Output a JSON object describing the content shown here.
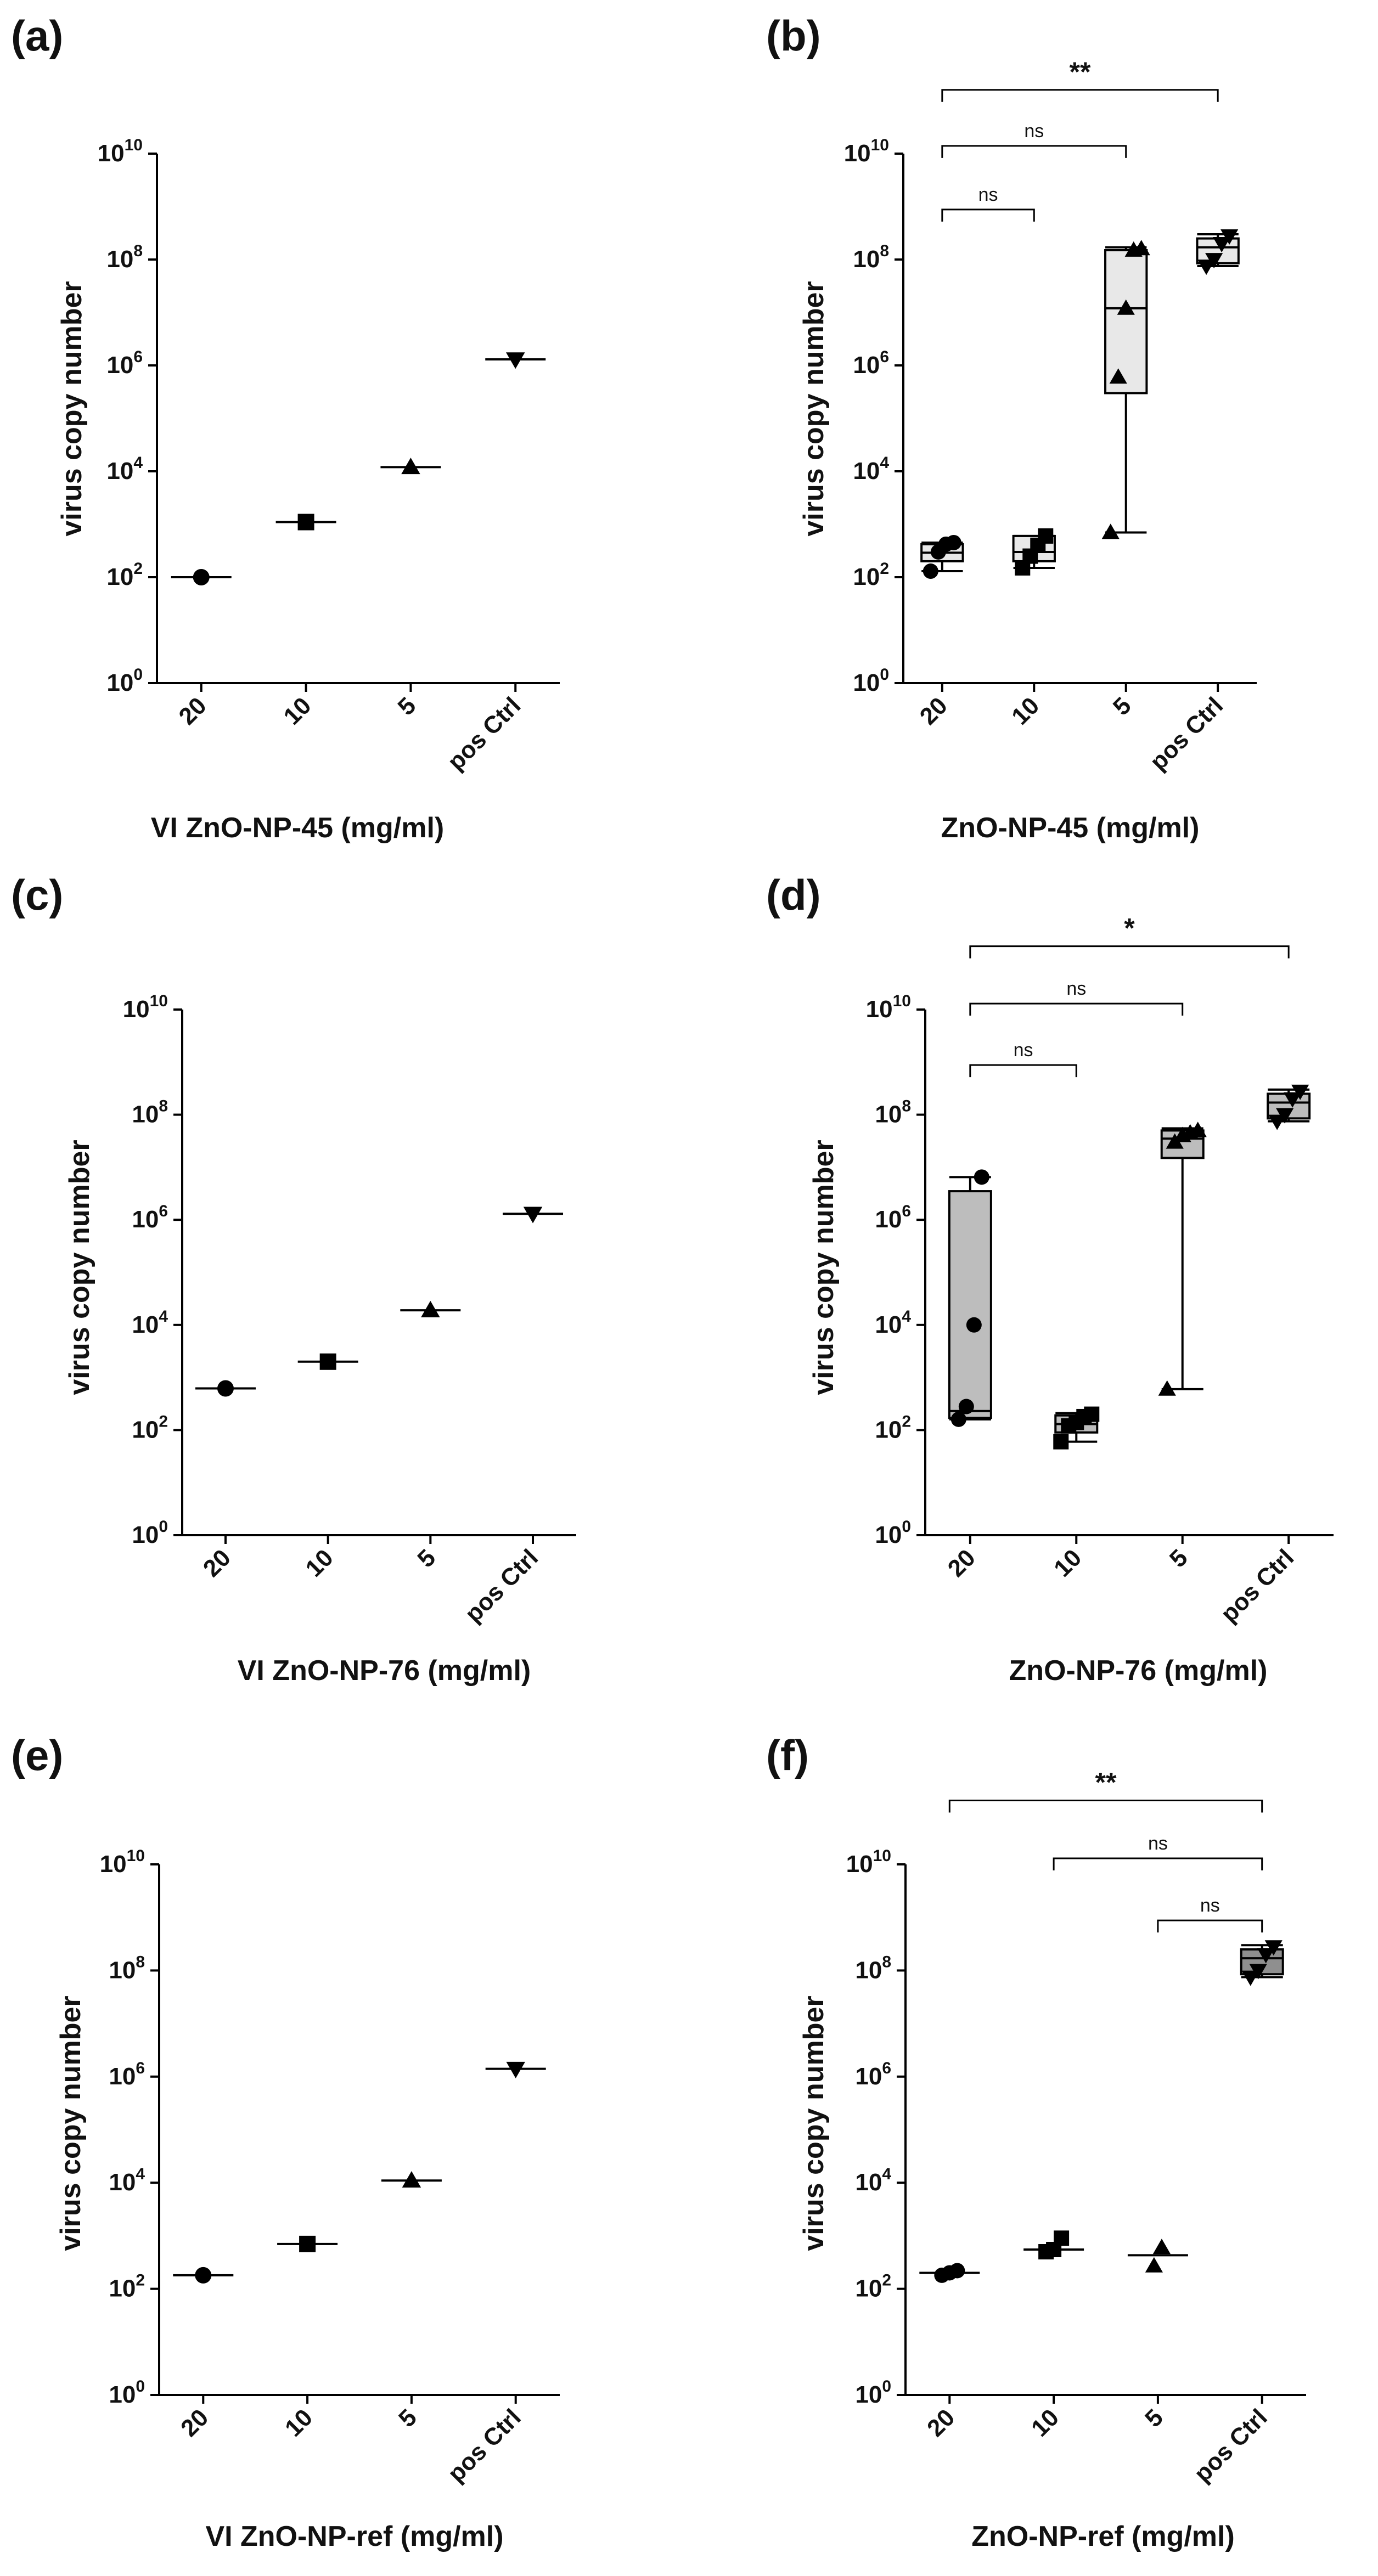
{
  "figure": {
    "panel_labels": [
      "(a)",
      "(b)",
      "(c)",
      "(d)",
      "(e)",
      "(f)"
    ]
  },
  "chart_data": [
    {
      "panel": "(a)",
      "type": "scatter",
      "title": "",
      "xlabel": "VI ZnO-NP-45 (mg/ml)",
      "ylabel": "virus copy number",
      "yscale": "log10",
      "ylim": [
        1,
        10000000000
      ],
      "yticks": [
        {
          "base": "10",
          "exp": "0"
        },
        {
          "base": "10",
          "exp": "2"
        },
        {
          "base": "10",
          "exp": "4"
        },
        {
          "base": "10",
          "exp": "6"
        },
        {
          "base": "10",
          "exp": "8"
        },
        {
          "base": "10",
          "exp": "10"
        }
      ],
      "categories": [
        "20",
        "10",
        "5",
        "pos Ctrl"
      ],
      "markers": [
        "circle",
        "square",
        "triangle-up",
        "triangle-down"
      ],
      "values": [
        100,
        1100,
        12000,
        1300000
      ],
      "annotations": []
    },
    {
      "panel": "(b)",
      "type": "box",
      "title": "",
      "xlabel": "ZnO-NP-45 (mg/ml)",
      "ylabel": "virus copy number",
      "yscale": "log10",
      "ylim": [
        1,
        10000000000
      ],
      "yticks": [
        {
          "base": "10",
          "exp": "0"
        },
        {
          "base": "10",
          "exp": "2"
        },
        {
          "base": "10",
          "exp": "4"
        },
        {
          "base": "10",
          "exp": "6"
        },
        {
          "base": "10",
          "exp": "8"
        },
        {
          "base": "10",
          "exp": "10"
        }
      ],
      "categories": [
        "20",
        "10",
        "5",
        "pos Ctrl"
      ],
      "markers": [
        "circle",
        "square",
        "triangle-up",
        "triangle-down"
      ],
      "fill": "#e8e8e8",
      "boxes": [
        {
          "min": 130,
          "q1": 200,
          "median": 290,
          "q3": 420,
          "max": 450,
          "points": [
            130,
            300,
            420,
            450
          ]
        },
        {
          "min": 150,
          "q1": 200,
          "median": 300,
          "q3": 600,
          "max": 600,
          "points": [
            150,
            250,
            400,
            600
          ]
        },
        {
          "min": 700,
          "q1": 300000,
          "median": 12000000,
          "q3": 150000000,
          "max": 170000000,
          "points": [
            700,
            600000,
            12000000,
            150000000,
            160000000
          ]
        },
        {
          "min": 75000000,
          "q1": 85000000,
          "median": 170000000,
          "q3": 250000000,
          "max": 300000000,
          "points": [
            75000000,
            100000000,
            200000000,
            280000000
          ]
        }
      ],
      "annotations": [
        {
          "from": 0,
          "to": 1,
          "label": "ns",
          "bold": false,
          "y": 880000000
        },
        {
          "from": 0,
          "to": 2,
          "label": "ns",
          "bold": false,
          "y": 14000000000
        },
        {
          "from": 0,
          "to": 3,
          "label": "**",
          "bold": true,
          "y": 160000000000
        }
      ]
    },
    {
      "panel": "(c)",
      "type": "scatter",
      "title": "",
      "xlabel": "VI ZnO-NP-76 (mg/ml)",
      "ylabel": "virus copy number",
      "yscale": "log10",
      "ylim": [
        1,
        10000000000
      ],
      "yticks": [
        {
          "base": "10",
          "exp": "0"
        },
        {
          "base": "10",
          "exp": "2"
        },
        {
          "base": "10",
          "exp": "4"
        },
        {
          "base": "10",
          "exp": "6"
        },
        {
          "base": "10",
          "exp": "8"
        },
        {
          "base": "10",
          "exp": "10"
        }
      ],
      "categories": [
        "20",
        "10",
        "5",
        "pos Ctrl"
      ],
      "markers": [
        "circle",
        "square",
        "triangle-up",
        "triangle-down"
      ],
      "values": [
        620,
        2000,
        19000,
        1300000
      ],
      "annotations": []
    },
    {
      "panel": "(d)",
      "type": "box",
      "title": "",
      "xlabel": "ZnO-NP-76 (mg/ml)",
      "ylabel": "virus copy number",
      "yscale": "log10",
      "ylim": [
        1,
        10000000000
      ],
      "yticks": [
        {
          "base": "10",
          "exp": "0"
        },
        {
          "base": "10",
          "exp": "2"
        },
        {
          "base": "10",
          "exp": "4"
        },
        {
          "base": "10",
          "exp": "6"
        },
        {
          "base": "10",
          "exp": "8"
        },
        {
          "base": "10",
          "exp": "10"
        }
      ],
      "categories": [
        "20",
        "10",
        "5",
        "pos Ctrl"
      ],
      "markers": [
        "circle",
        "square",
        "triangle-up",
        "triangle-down"
      ],
      "fill": "#bdbdbd",
      "boxes": [
        {
          "min": 160,
          "q1": 170,
          "median": 230,
          "q3": 3500000,
          "max": 6500000,
          "points": [
            160,
            280,
            10000,
            6500000
          ]
        },
        {
          "min": 60,
          "q1": 90,
          "median": 130,
          "q3": 190,
          "max": 210,
          "points": [
            60,
            120,
            140,
            180,
            200
          ]
        },
        {
          "min": 600,
          "q1": 15000000,
          "median": 35000000,
          "q3": 50000000,
          "max": 55000000,
          "points": [
            600,
            30000000,
            40000000,
            45000000,
            50000000
          ]
        },
        {
          "min": 75000000,
          "q1": 85000000,
          "median": 170000000,
          "q3": 250000000,
          "max": 300000000,
          "points": [
            75000000,
            100000000,
            200000000,
            280000000
          ]
        }
      ],
      "annotations": [
        {
          "from": 0,
          "to": 1,
          "label": "ns",
          "bold": false,
          "y": 880000000
        },
        {
          "from": 0,
          "to": 2,
          "label": "ns",
          "bold": false,
          "y": 13000000000
        },
        {
          "from": 0,
          "to": 3,
          "label": "*",
          "bold": true,
          "y": 160000000000
        }
      ]
    },
    {
      "panel": "(e)",
      "type": "scatter",
      "title": "",
      "xlabel": "VI ZnO-NP-ref (mg/ml)",
      "ylabel": "virus copy number",
      "yscale": "log10",
      "ylim": [
        1,
        10000000000
      ],
      "yticks": [
        {
          "base": "10",
          "exp": "0"
        },
        {
          "base": "10",
          "exp": "2"
        },
        {
          "base": "10",
          "exp": "4"
        },
        {
          "base": "10",
          "exp": "6"
        },
        {
          "base": "10",
          "exp": "8"
        },
        {
          "base": "10",
          "exp": "10"
        }
      ],
      "categories": [
        "20",
        "10",
        "5",
        "pos Ctrl"
      ],
      "markers": [
        "circle",
        "square",
        "triangle-up",
        "triangle-down"
      ],
      "values": [
        180,
        700,
        11000,
        1400000
      ],
      "annotations": []
    },
    {
      "panel": "(f)",
      "type": "box",
      "title": "",
      "xlabel": "ZnO-NP-ref (mg/ml)",
      "ylabel": "virus copy number",
      "yscale": "log10",
      "ylim": [
        1,
        10000000000
      ],
      "yticks": [
        {
          "base": "10",
          "exp": "0"
        },
        {
          "base": "10",
          "exp": "2"
        },
        {
          "base": "10",
          "exp": "4"
        },
        {
          "base": "10",
          "exp": "6"
        },
        {
          "base": "10",
          "exp": "8"
        },
        {
          "base": "10",
          "exp": "10"
        }
      ],
      "categories": [
        "20",
        "10",
        "5",
        "pos Ctrl"
      ],
      "markers": [
        "circle",
        "square",
        "triangle-up",
        "triangle-down"
      ],
      "fill": "#8f8f8f",
      "boxes": [
        {
          "summary": "line",
          "median": 200,
          "points": [
            180,
            200,
            220
          ]
        },
        {
          "summary": "line",
          "median": 550,
          "points": [
            500,
            550,
            900
          ]
        },
        {
          "summary": "line",
          "median": 430,
          "points": [
            270,
            600
          ]
        },
        {
          "min": 75000000,
          "q1": 85000000,
          "median": 170000000,
          "q3": 250000000,
          "max": 300000000,
          "points": [
            75000000,
            100000000,
            200000000,
            280000000
          ]
        }
      ],
      "annotations": [
        {
          "from": 2,
          "to": 3,
          "label": "ns",
          "bold": false,
          "y": 880000000
        },
        {
          "from": 1,
          "to": 3,
          "label": "ns",
          "bold": false,
          "y": 13000000000
        },
        {
          "from": 0,
          "to": 3,
          "label": "**",
          "bold": true,
          "y": 160000000000
        }
      ]
    }
  ]
}
